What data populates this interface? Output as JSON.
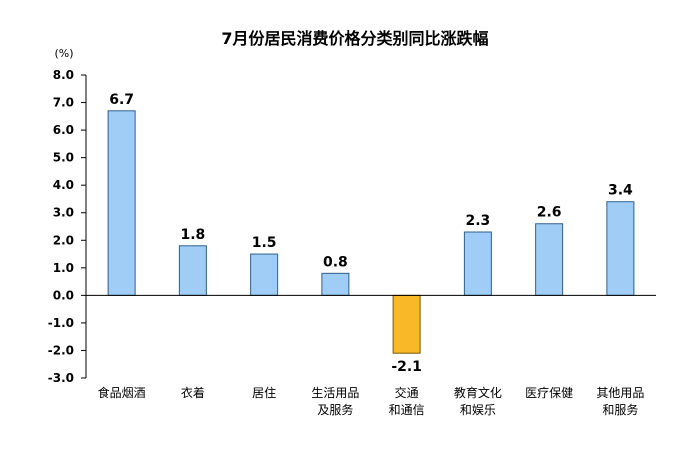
{
  "chart_data": {
    "type": "bar",
    "title": "7月份居民消费价格分类别同比涨跌幅",
    "unit_label": "(%)",
    "categories": [
      [
        "食品烟酒"
      ],
      [
        "衣着"
      ],
      [
        "居住"
      ],
      [
        "生活用品",
        "及服务"
      ],
      [
        "交通",
        "和通信"
      ],
      [
        "教育文化",
        "和娱乐"
      ],
      [
        "医疗保健"
      ],
      [
        "其他用品",
        "和服务"
      ]
    ],
    "values": [
      6.7,
      1.8,
      1.5,
      0.8,
      -2.1,
      2.3,
      2.6,
      3.4
    ],
    "value_labels": [
      "6.7",
      "1.8",
      "1.5",
      "0.8",
      "-2.1",
      "2.3",
      "2.6",
      "3.4"
    ],
    "ylim": [
      -3.0,
      8.0
    ],
    "yticks": [
      "8.0",
      "7.0",
      "6.0",
      "5.0",
      "4.0",
      "3.0",
      "2.0",
      "1.0",
      "0.0",
      "-1.0",
      "-2.0",
      "-3.0"
    ],
    "grid": false,
    "colors": {
      "positive_fill": "#9fcdf6",
      "positive_stroke": "#2f5f8a",
      "negative_fill": "#f7b928",
      "negative_stroke": "#7a5a00",
      "axis": "#000000"
    }
  }
}
